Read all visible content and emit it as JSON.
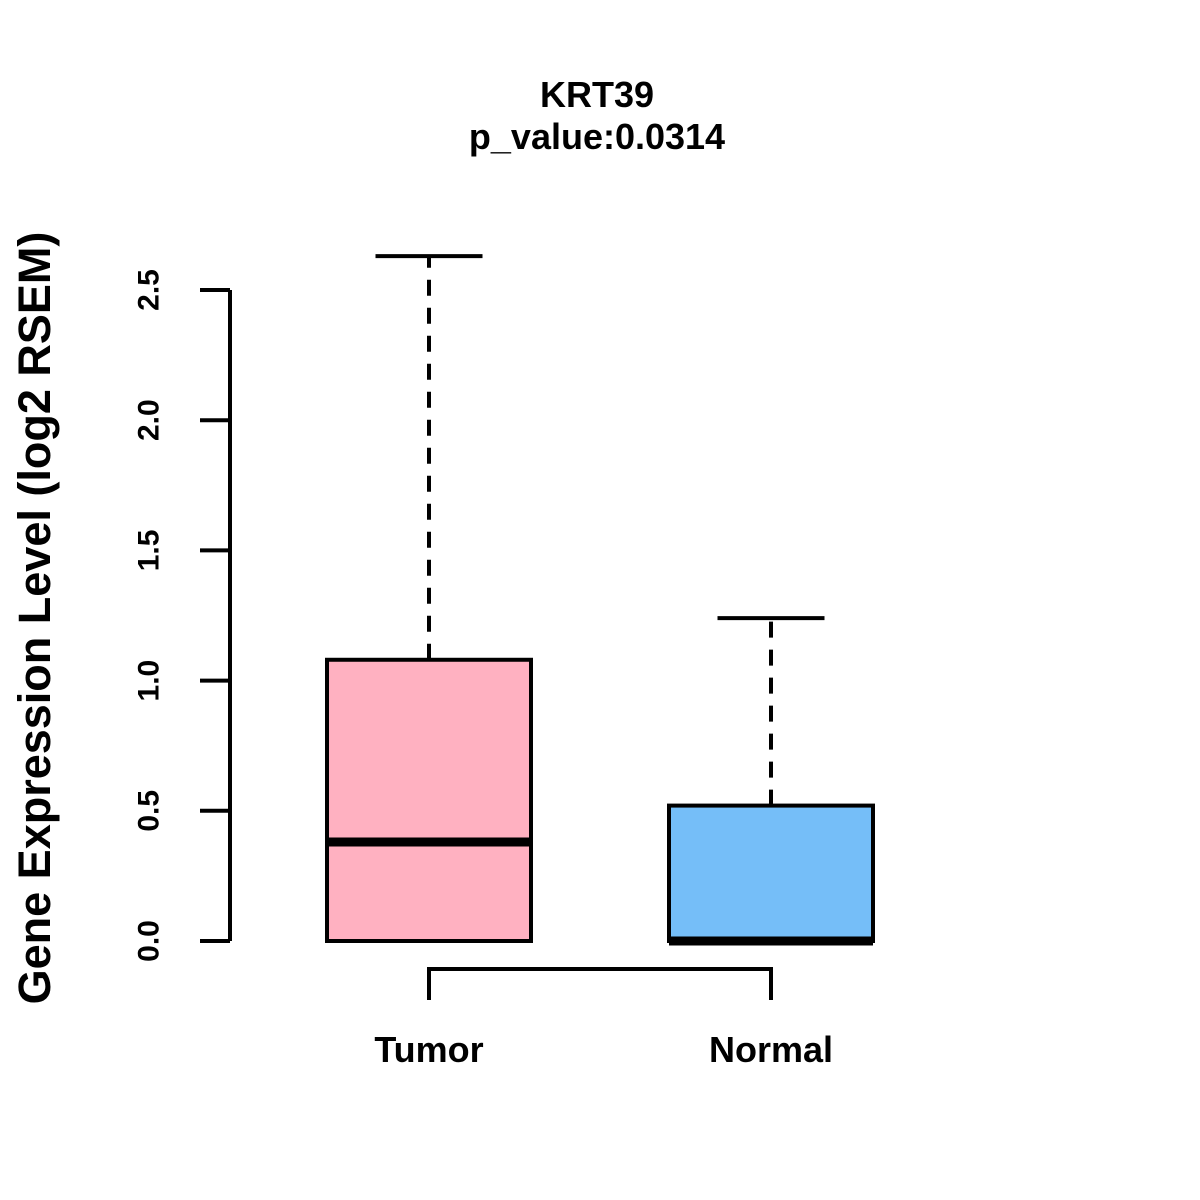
{
  "figure": {
    "gene": "KRT39",
    "p_value": "0.0314"
  },
  "chart_data": {
    "type": "boxplot",
    "title": "KRT39",
    "subtitle": "p_value:0.0314",
    "ylabel": "Gene Expression Level (log2 RSEM)",
    "xlabel": "",
    "categories": [
      "Tumor",
      "Normal"
    ],
    "series": [
      {
        "name": "Tumor",
        "color": "#FFB1C1",
        "min": 0.0,
        "q1": 0.0,
        "median": 0.38,
        "q3": 1.08,
        "max": 2.63,
        "whisker_style": "dashed"
      },
      {
        "name": "Normal",
        "color": "#75BEF8",
        "min": 0.0,
        "q1": 0.0,
        "median": 0.0,
        "q3": 0.52,
        "max": 1.24,
        "whisker_style": "dashed"
      }
    ],
    "ylim": [
      0,
      2.63
    ],
    "yticks": [
      0.0,
      0.5,
      1.0,
      1.5,
      2.0,
      2.5
    ],
    "ytick_labels": [
      "0.0",
      "0.5",
      "1.0",
      "1.5",
      "2.0",
      "2.5"
    ],
    "grid": false,
    "legend": false,
    "comparison_bracket": {
      "from": "Tumor",
      "to": "Normal"
    },
    "stroke_color": "#000000",
    "background_color": "#FFFFFF"
  }
}
